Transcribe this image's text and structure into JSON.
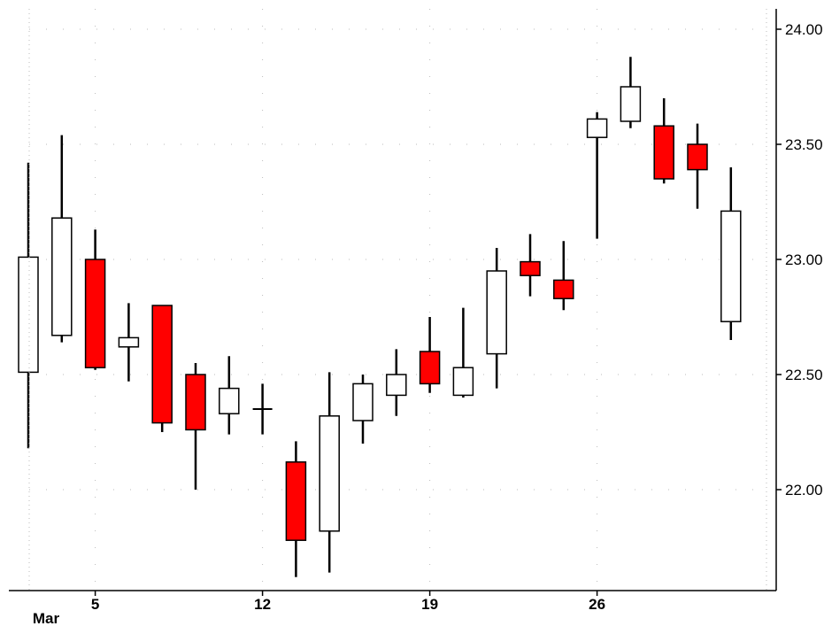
{
  "chart_data": {
    "type": "candlestick",
    "title": "",
    "xlabel": "",
    "ylabel": "",
    "ylim": [
      21.6,
      24.1
    ],
    "y_ticks": [
      "24.00",
      "23.50",
      "23.00",
      "22.50",
      "22.00"
    ],
    "x_ticks": [
      {
        "label": "5",
        "index": 2
      },
      {
        "label": "12",
        "index": 7
      },
      {
        "label": "19",
        "index": 12
      },
      {
        "label": "26",
        "index": 17
      }
    ],
    "month_label": {
      "label": "Mar",
      "index": 0
    },
    "grid": true,
    "colors": {
      "up": "#ffffff",
      "down": "#ff0000",
      "outline": "#000000",
      "grid": "#bbbbbb"
    },
    "candles": [
      {
        "open": 22.51,
        "high": 23.42,
        "low": 22.18,
        "close": 23.01
      },
      {
        "open": 22.67,
        "high": 23.54,
        "low": 22.64,
        "close": 23.18
      },
      {
        "open": 23.0,
        "high": 23.13,
        "low": 22.52,
        "close": 22.53
      },
      {
        "open": 22.62,
        "high": 22.81,
        "low": 22.47,
        "close": 22.66
      },
      {
        "open": 22.8,
        "high": 22.8,
        "low": 22.25,
        "close": 22.29
      },
      {
        "open": 22.5,
        "high": 22.55,
        "low": 22.0,
        "close": 22.26
      },
      {
        "open": 22.33,
        "high": 22.58,
        "low": 22.24,
        "close": 22.44
      },
      {
        "open": 22.35,
        "high": 22.46,
        "low": 22.24,
        "close": 22.35
      },
      {
        "open": 22.12,
        "high": 22.21,
        "low": 21.62,
        "close": 21.78
      },
      {
        "open": 21.82,
        "high": 22.51,
        "low": 21.64,
        "close": 22.32
      },
      {
        "open": 22.3,
        "high": 22.5,
        "low": 22.2,
        "close": 22.46
      },
      {
        "open": 22.41,
        "high": 22.61,
        "low": 22.32,
        "close": 22.5
      },
      {
        "open": 22.6,
        "high": 22.75,
        "low": 22.42,
        "close": 22.46
      },
      {
        "open": 22.41,
        "high": 22.79,
        "low": 22.4,
        "close": 22.53
      },
      {
        "open": 22.59,
        "high": 23.05,
        "low": 22.44,
        "close": 22.95
      },
      {
        "open": 22.99,
        "high": 23.11,
        "low": 22.84,
        "close": 22.93
      },
      {
        "open": 22.91,
        "high": 23.08,
        "low": 22.78,
        "close": 22.83
      },
      {
        "open": 23.53,
        "high": 23.64,
        "low": 23.09,
        "close": 23.61
      },
      {
        "open": 23.6,
        "high": 23.88,
        "low": 23.57,
        "close": 23.75
      },
      {
        "open": 23.58,
        "high": 23.7,
        "low": 23.33,
        "close": 23.35
      },
      {
        "open": 23.5,
        "high": 23.59,
        "low": 23.22,
        "close": 23.39
      },
      {
        "open": 22.73,
        "high": 23.4,
        "low": 22.65,
        "close": 23.21
      }
    ]
  }
}
